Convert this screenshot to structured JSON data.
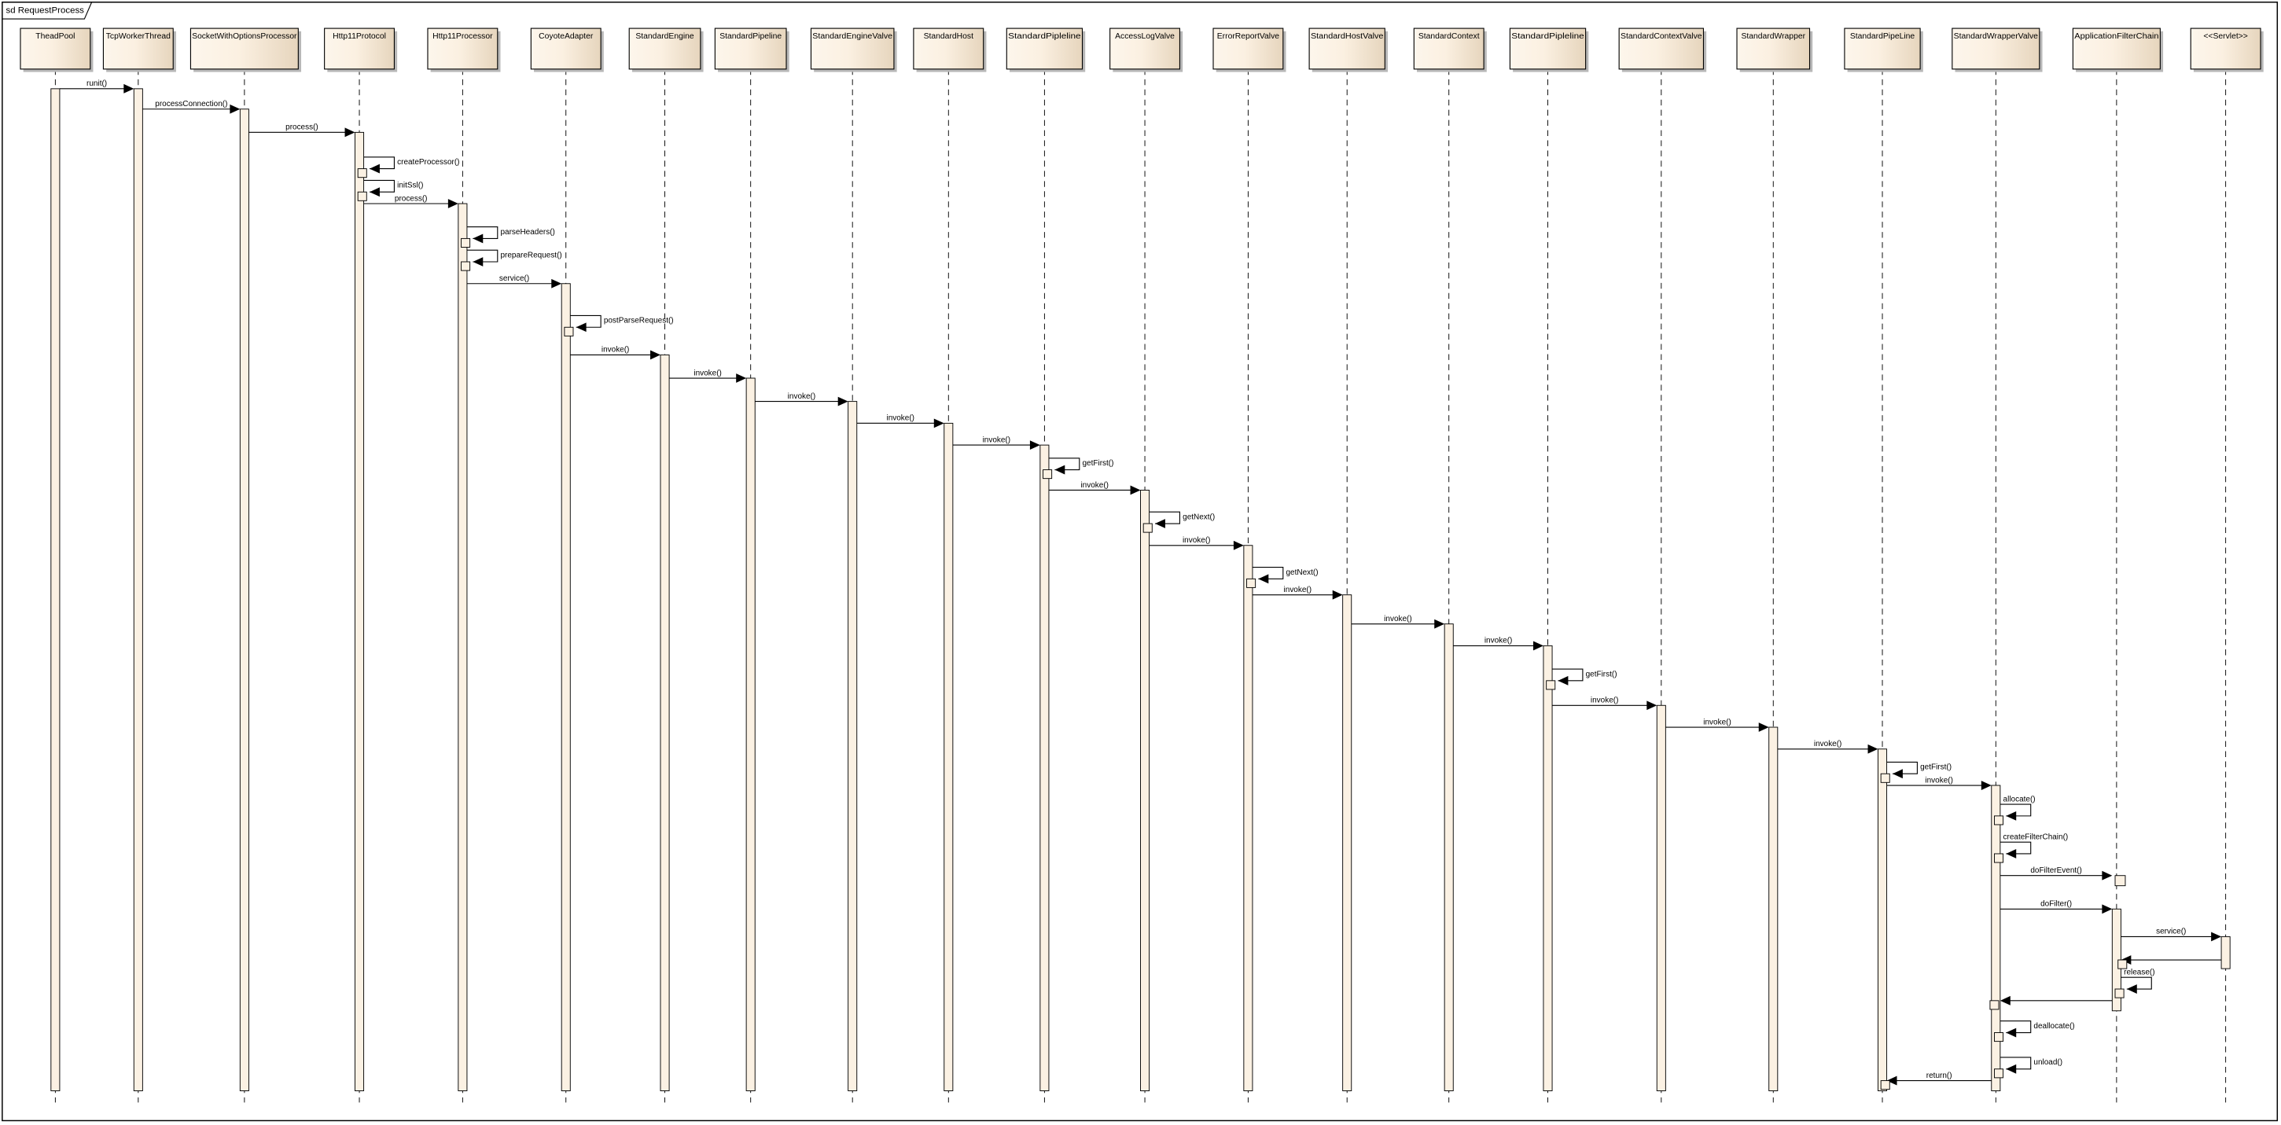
{
  "frame": {
    "title": "sd RequestProcess"
  },
  "colors": {
    "box_light": "#fdf6ec",
    "box_dark": "#e6d5bd",
    "activation": "#fbf1e3",
    "line": "#000000"
  },
  "participants": [
    {
      "name": "TheadPool"
    },
    {
      "name": "TcpWorkerThread"
    },
    {
      "name": "SocketWithOptionsProcessor"
    },
    {
      "name": "Http11Protocol"
    },
    {
      "name": "Http11Processor"
    },
    {
      "name": "CoyoteAdapter"
    },
    {
      "name": "StandardEngine"
    },
    {
      "name": "StandardPipeline"
    },
    {
      "name": "StandardEngineValve"
    },
    {
      "name": "StandardHost"
    },
    {
      "name": "StandardPipleline"
    },
    {
      "name": "AccessLogValve"
    },
    {
      "name": "ErrorReportValve"
    },
    {
      "name": "StandardHostValve"
    },
    {
      "name": "StandardContext"
    },
    {
      "name": "StandardPipleline"
    },
    {
      "name": "StandardContextValve"
    },
    {
      "name": "StandardWrapper"
    },
    {
      "name": "StandardPipeLine"
    },
    {
      "name": "StandardWrapperValve"
    },
    {
      "name": "ApplicationFilterChain"
    },
    {
      "name": "<<Servlet>>"
    }
  ],
  "messages": [
    {
      "label": "runit()",
      "from": 0,
      "to": 1
    },
    {
      "label": "processConnection()",
      "from": 1,
      "to": 2
    },
    {
      "label": "process()",
      "from": 2,
      "to": 3
    },
    {
      "label": "createProcessor()",
      "from": 3,
      "to": 3
    },
    {
      "label": "initSsl()",
      "from": 3,
      "to": 3
    },
    {
      "label": "process()",
      "from": 3,
      "to": 4
    },
    {
      "label": "parseHeaders()",
      "from": 4,
      "to": 4
    },
    {
      "label": "prepareRequest()",
      "from": 4,
      "to": 4
    },
    {
      "label": "service()",
      "from": 4,
      "to": 5
    },
    {
      "label": "postParseRequest()",
      "from": 5,
      "to": 5
    },
    {
      "label": "invoke()",
      "from": 5,
      "to": 6
    },
    {
      "label": "invoke()",
      "from": 6,
      "to": 7
    },
    {
      "label": "invoke()",
      "from": 7,
      "to": 8
    },
    {
      "label": "invoke()",
      "from": 8,
      "to": 9
    },
    {
      "label": "invoke()",
      "from": 9,
      "to": 10
    },
    {
      "label": "getFirst()",
      "from": 10,
      "to": 10
    },
    {
      "label": "invoke()",
      "from": 10,
      "to": 11
    },
    {
      "label": "getNext()",
      "from": 11,
      "to": 11
    },
    {
      "label": "invoke()",
      "from": 11,
      "to": 12
    },
    {
      "label": "getNext()",
      "from": 12,
      "to": 12
    },
    {
      "label": "invoke()",
      "from": 12,
      "to": 13
    },
    {
      "label": "invoke()",
      "from": 13,
      "to": 14
    },
    {
      "label": "invoke()",
      "from": 14,
      "to": 15
    },
    {
      "label": "getFirst()",
      "from": 15,
      "to": 15
    },
    {
      "label": "invoke()",
      "from": 15,
      "to": 16
    },
    {
      "label": "invoke()",
      "from": 16,
      "to": 17
    },
    {
      "label": "invoke()",
      "from": 17,
      "to": 18
    },
    {
      "label": "getFirst()",
      "from": 18,
      "to": 18
    },
    {
      "label": "invoke()",
      "from": 18,
      "to": 19
    },
    {
      "label": "allocate()",
      "from": 19,
      "to": 19
    },
    {
      "label": "createFilterChain()",
      "from": 19,
      "to": 19
    },
    {
      "label": "doFilterEvent()",
      "from": 19,
      "to": 20
    },
    {
      "label": "doFilter()",
      "from": 19,
      "to": 20
    },
    {
      "label": "service()",
      "from": 20,
      "to": 21
    },
    {
      "label": "",
      "from": 21,
      "to": 20
    },
    {
      "label": "release()",
      "from": 20,
      "to": 20
    },
    {
      "label": "",
      "from": 20,
      "to": 19
    },
    {
      "label": "deallocate()",
      "from": 19,
      "to": 19
    },
    {
      "label": "unload()",
      "from": 19,
      "to": 19
    },
    {
      "label": "return()",
      "from": 19,
      "to": 18
    }
  ]
}
